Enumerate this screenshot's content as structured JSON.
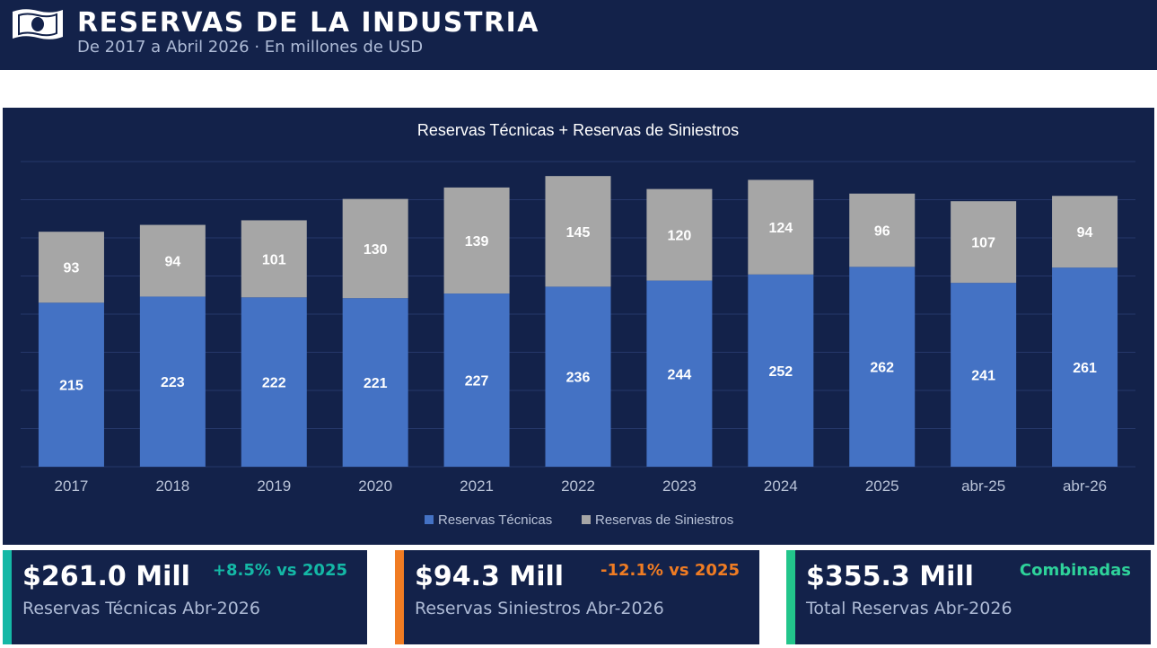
{
  "header": {
    "icon": "banknote-icon",
    "title": "RESERVAS DE LA INDUSTRIA",
    "subtitle": "De 2017 a Abril 2026 · En millones de USD"
  },
  "chart_data": {
    "type": "bar",
    "stacked": true,
    "title": "Reservas Técnicas + Reservas de Siniestros",
    "categories": [
      "2017",
      "2018",
      "2019",
      "2020",
      "2021",
      "2022",
      "2023",
      "2024",
      "2025",
      "abr-25",
      "abr-26"
    ],
    "series": [
      {
        "name": "Reservas Técnicas",
        "color": "#4472c4",
        "values": [
          215,
          223,
          222,
          221,
          227,
          236,
          244,
          252,
          262,
          241,
          261
        ]
      },
      {
        "name": "Reservas de Siniestros",
        "color": "#a6a6a6",
        "values": [
          93,
          94,
          101,
          130,
          139,
          145,
          120,
          124,
          96,
          107,
          94
        ]
      }
    ],
    "ylim": [
      0,
      400
    ],
    "grid": true,
    "legend": "bottom",
    "data_labels": true
  },
  "kpis": [
    {
      "value": "$261.0 Mill",
      "delta": "+8.5% vs 2025",
      "label": "Reservas Técnicas Abr-2026",
      "accent": "#14b8a6",
      "delta_color": "#14b8a6"
    },
    {
      "value": "$94.3 Mill",
      "delta": "-12.1% vs 2025",
      "label": "Reservas Siniestros Abr-2026",
      "accent": "#f07c23",
      "delta_color": "#f07c23"
    },
    {
      "value": "$355.3 Mill",
      "delta": "Combinadas",
      "label": "Total Reservas Abr-2026",
      "accent": "#22c58b",
      "delta_color": "#2ed29a"
    }
  ]
}
